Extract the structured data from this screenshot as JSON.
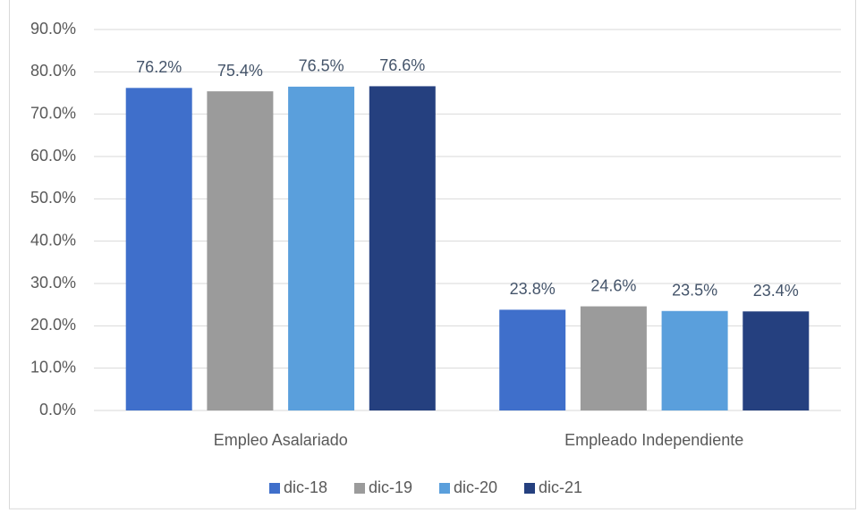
{
  "chart_data": {
    "type": "bar",
    "categories": [
      "Empleo Asalariado",
      "Empleado Independiente"
    ],
    "series": [
      {
        "name": "dic-18",
        "color": "#3f6fcb",
        "values": [
          76.2,
          23.8
        ],
        "value_labels": [
          "76.2%",
          "23.8%"
        ]
      },
      {
        "name": "dic-19",
        "color": "#9b9b9b",
        "values": [
          75.4,
          24.6
        ],
        "value_labels": [
          "75.4%",
          "24.6%"
        ]
      },
      {
        "name": "dic-20",
        "color": "#5a9fdc",
        "values": [
          76.5,
          23.5
        ],
        "value_labels": [
          "76.5%",
          "23.5%"
        ]
      },
      {
        "name": "dic-21",
        "color": "#25407f",
        "values": [
          76.6,
          23.4
        ],
        "value_labels": [
          "76.6%",
          "23.4%"
        ]
      }
    ],
    "ylim": [
      0,
      90
    ],
    "yticks": [
      {
        "value": 0,
        "label": "0.0%"
      },
      {
        "value": 10,
        "label": "10.0%"
      },
      {
        "value": 20,
        "label": "20.0%"
      },
      {
        "value": 30,
        "label": "30.0%"
      },
      {
        "value": 40,
        "label": "40.0%"
      },
      {
        "value": 50,
        "label": "50.0%"
      },
      {
        "value": 60,
        "label": "60.0%"
      },
      {
        "value": 70,
        "label": "70.0%"
      },
      {
        "value": 80,
        "label": "80.0%"
      },
      {
        "value": 90,
        "label": "90.0%"
      }
    ],
    "grid": true,
    "legend": "bottom"
  }
}
